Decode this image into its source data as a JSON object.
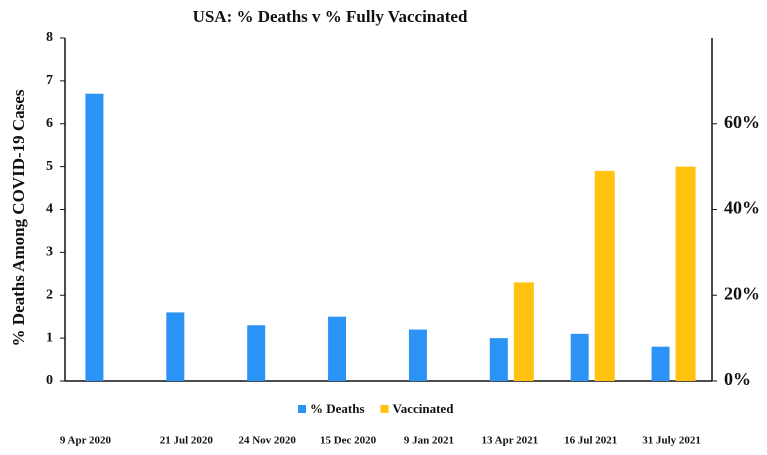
{
  "chart_data": {
    "type": "bar",
    "title": "USA: % Deaths v % Fully Vaccinated",
    "y_label": "% Deaths Among COVID-19 Cases",
    "categories": [
      "9 Apr 2020",
      "21 Jul 2020",
      "24 Nov 2020",
      "15 Dec 2020",
      "9 Jan 2021",
      "13 Apr 2021",
      "16 Jul 2021",
      "31 July 2021"
    ],
    "series": [
      {
        "name": "% Deaths",
        "color": "#2a93f5",
        "values": [
          6.7,
          1.6,
          1.3,
          1.5,
          1.2,
          1.0,
          1.1,
          0.8
        ]
      },
      {
        "name": "Vaccinated",
        "color": "#ffc20e",
        "axis": "y2",
        "values": [
          null,
          null,
          null,
          null,
          null,
          23,
          49,
          50
        ]
      }
    ],
    "ylim": [
      0,
      8
    ],
    "yticks": [
      0,
      1,
      2,
      3,
      4,
      5,
      6,
      7,
      8
    ],
    "y2lim": [
      0,
      80
    ],
    "y2ticks": [
      {
        "value": 0,
        "label": "0%"
      },
      {
        "value": 20,
        "label": "20%"
      },
      {
        "value": 40,
        "label": "40%"
      },
      {
        "value": 60,
        "label": "60%"
      }
    ],
    "legend": "bottom"
  }
}
